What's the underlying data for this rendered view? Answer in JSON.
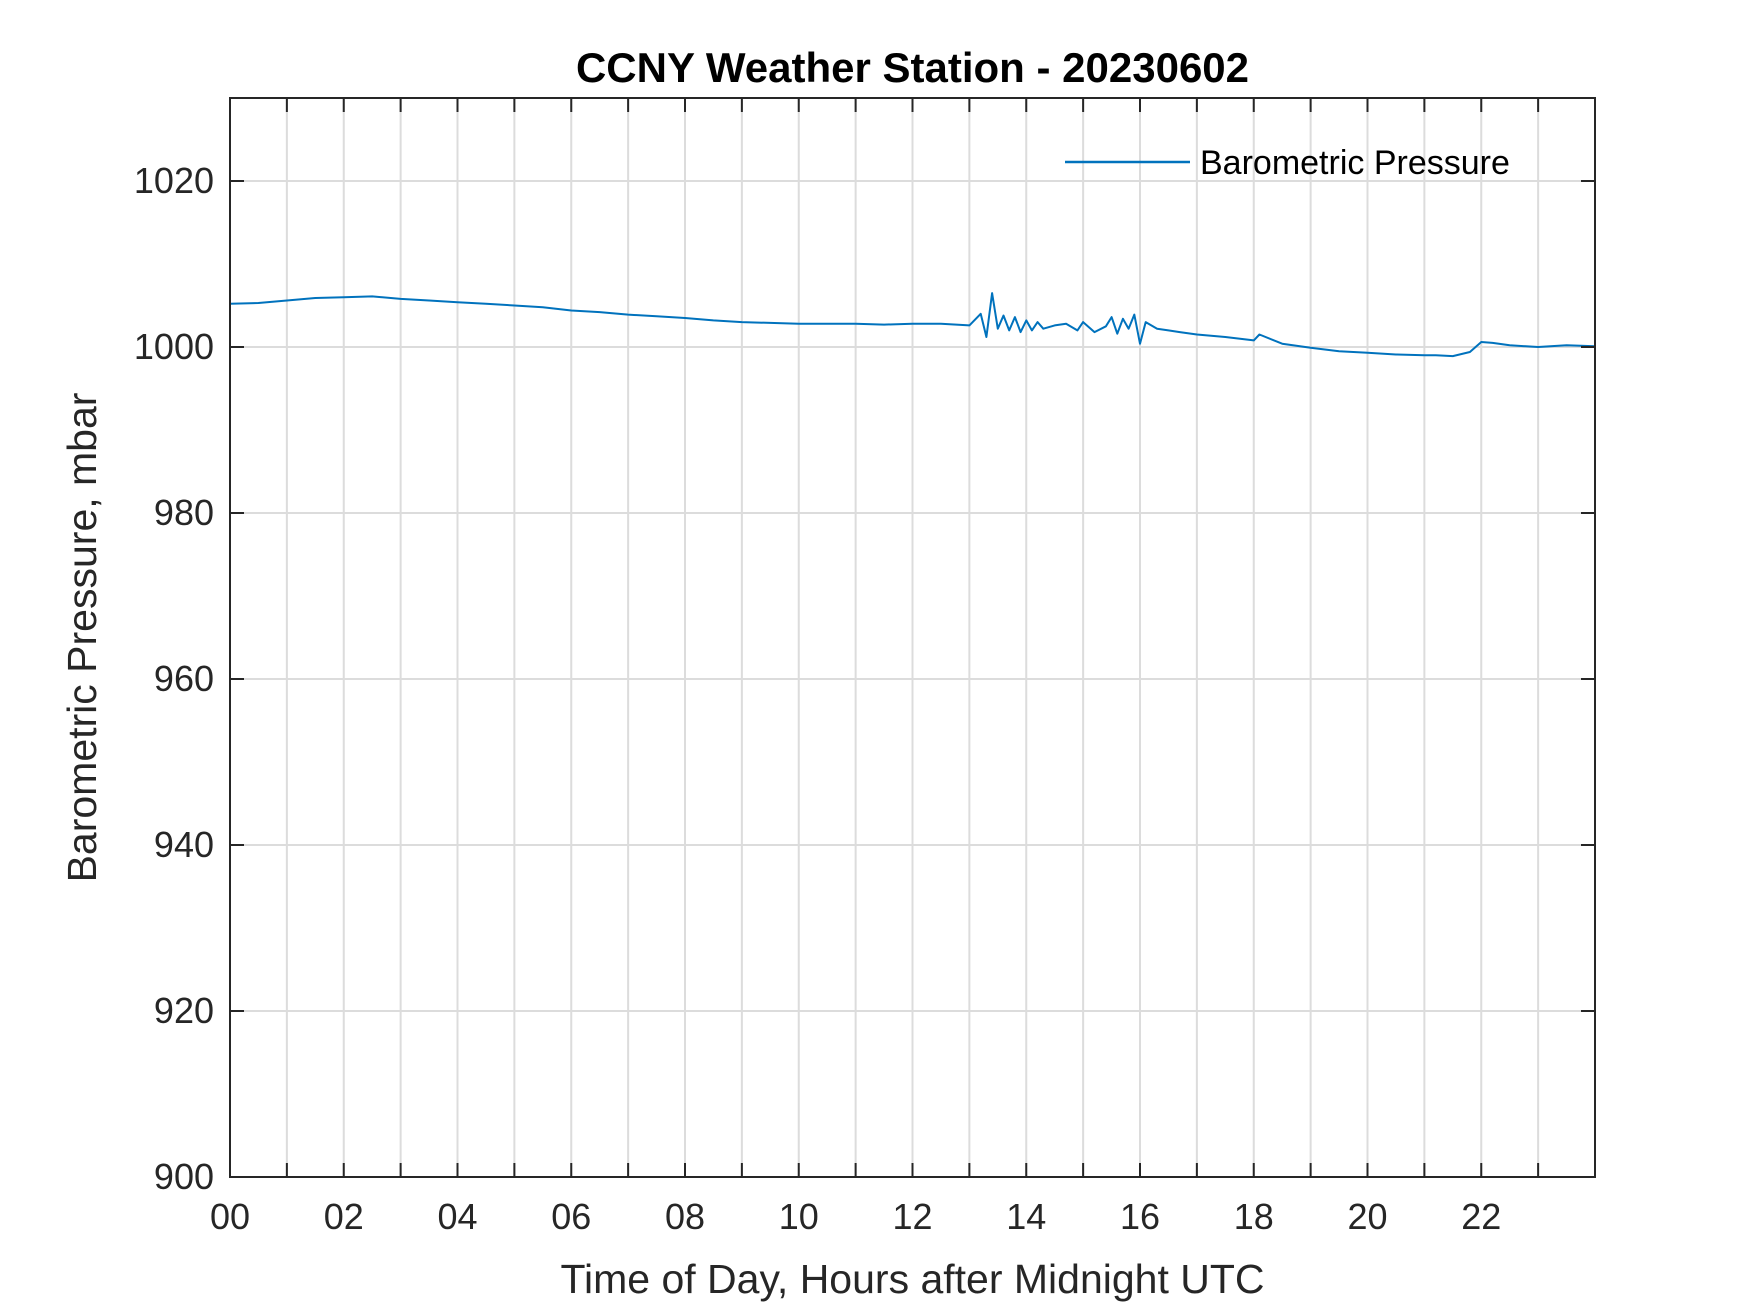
{
  "chart_data": {
    "type": "line",
    "title": "CCNY Weather Station - 20230602",
    "xlabel": "Time of Day, Hours after Midnight UTC",
    "ylabel": "Barometric Pressure, mbar",
    "xlim": [
      0,
      24
    ],
    "ylim": [
      900,
      1030
    ],
    "xticks": [
      0,
      2,
      4,
      6,
      8,
      10,
      12,
      14,
      16,
      18,
      20,
      22
    ],
    "xtick_labels": [
      "00",
      "02",
      "04",
      "06",
      "08",
      "10",
      "12",
      "14",
      "16",
      "18",
      "20",
      "22"
    ],
    "xgrid_step": 1,
    "yticks": [
      900,
      920,
      940,
      960,
      980,
      1000,
      1020
    ],
    "ytick_labels": [
      "900",
      "920",
      "940",
      "960",
      "980",
      "1000",
      "1020"
    ],
    "grid": true,
    "legend_position": "top-right",
    "series": [
      {
        "name": "Barometric Pressure",
        "color": "#0072BD",
        "x": [
          0,
          0.5,
          1,
          1.5,
          2,
          2.5,
          3,
          3.5,
          4,
          4.5,
          5,
          5.5,
          6,
          6.5,
          7,
          7.5,
          8,
          8.5,
          9,
          9.5,
          10,
          10.5,
          11,
          11.5,
          12,
          12.5,
          13,
          13.2,
          13.3,
          13.4,
          13.5,
          13.6,
          13.7,
          13.8,
          13.9,
          14,
          14.1,
          14.2,
          14.3,
          14.5,
          14.7,
          14.9,
          15,
          15.2,
          15.4,
          15.5,
          15.6,
          15.7,
          15.8,
          15.9,
          16,
          16.1,
          16.3,
          16.5,
          16.7,
          17,
          17.5,
          18,
          18.1,
          18.5,
          19,
          19.5,
          20,
          20.5,
          21,
          21.2,
          21.5,
          21.8,
          22,
          22.2,
          22.5,
          23,
          23.5,
          24
        ],
        "y": [
          1005.2,
          1005.3,
          1005.6,
          1005.9,
          1006.0,
          1006.1,
          1005.8,
          1005.6,
          1005.4,
          1005.2,
          1005.0,
          1004.8,
          1004.4,
          1004.2,
          1003.9,
          1003.7,
          1003.5,
          1003.2,
          1003.0,
          1002.9,
          1002.8,
          1002.8,
          1002.8,
          1002.7,
          1002.8,
          1002.8,
          1002.6,
          1004.0,
          1001.2,
          1006.5,
          1002.2,
          1003.8,
          1002.0,
          1003.6,
          1001.8,
          1003.2,
          1002.0,
          1003.0,
          1002.2,
          1002.6,
          1002.8,
          1002.0,
          1003.0,
          1001.8,
          1002.5,
          1003.6,
          1001.6,
          1003.4,
          1002.2,
          1003.9,
          1000.4,
          1003.0,
          1002.2,
          1002.0,
          1001.8,
          1001.5,
          1001.2,
          1000.8,
          1001.5,
          1000.4,
          999.9,
          999.5,
          999.3,
          999.1,
          999.0,
          999.0,
          998.9,
          999.4,
          1000.6,
          1000.5,
          1000.2,
          1000.0,
          1000.2,
          1000.1
        ]
      }
    ]
  }
}
